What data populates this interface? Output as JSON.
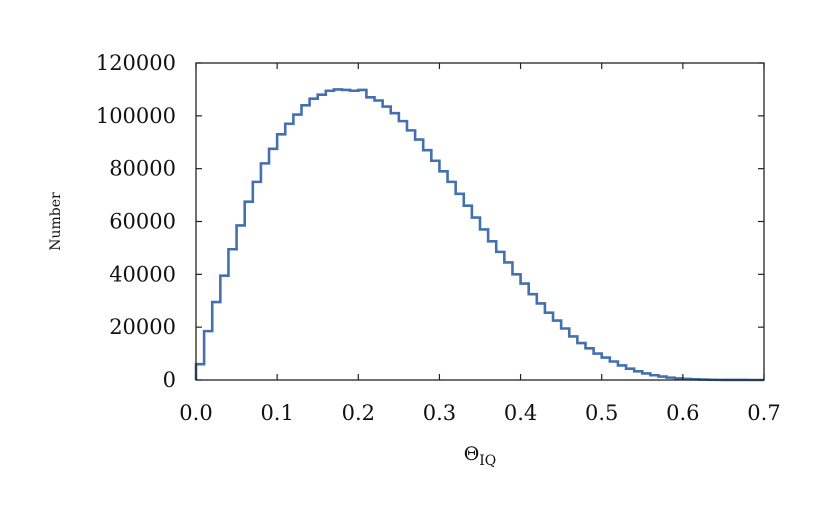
{
  "chart_data": {
    "type": "histogram",
    "xlabel": "Θ",
    "xlabel_subscript": "IQ",
    "ylabel": "Number",
    "xlim": [
      0.0,
      0.7
    ],
    "ylim": [
      0,
      120000
    ],
    "xticks": [
      "0.0",
      "0.1",
      "0.2",
      "0.3",
      "0.4",
      "0.5",
      "0.6",
      "0.7"
    ],
    "yticks": [
      "0",
      "20000",
      "40000",
      "60000",
      "80000",
      "100000",
      "120000"
    ],
    "grid": false,
    "line_color": "#4470b0",
    "bin_width": 0.01,
    "bin_start": 0.0,
    "values": [
      6000,
      18500,
      29500,
      39500,
      49500,
      58500,
      67500,
      75000,
      82000,
      87500,
      93000,
      97000,
      100500,
      104000,
      106500,
      108000,
      109500,
      110000,
      109800,
      109500,
      109800,
      107000,
      105800,
      103500,
      101000,
      98000,
      94500,
      91000,
      87000,
      83000,
      79000,
      75000,
      70500,
      66000,
      61500,
      57000,
      52500,
      48500,
      44500,
      40000,
      36500,
      32500,
      29000,
      25500,
      22500,
      19500,
      16500,
      14000,
      12000,
      10000,
      8500,
      7000,
      5500,
      4300,
      3300,
      2500,
      1800,
      1300,
      900,
      600,
      400,
      250,
      150,
      90,
      50,
      30,
      15,
      8,
      4,
      2
    ]
  }
}
